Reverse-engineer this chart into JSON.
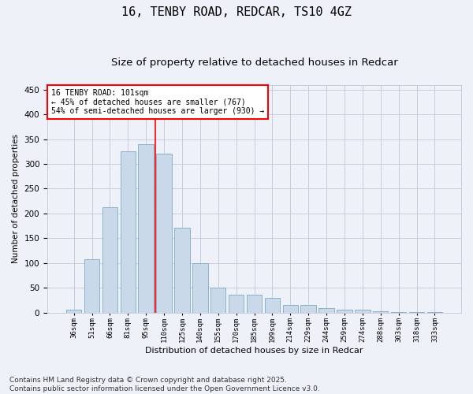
{
  "title": "16, TENBY ROAD, REDCAR, TS10 4GZ",
  "subtitle": "Size of property relative to detached houses in Redcar",
  "xlabel": "Distribution of detached houses by size in Redcar",
  "ylabel": "Number of detached properties",
  "categories": [
    "36sqm",
    "51sqm",
    "66sqm",
    "81sqm",
    "95sqm",
    "110sqm",
    "125sqm",
    "140sqm",
    "155sqm",
    "170sqm",
    "185sqm",
    "199sqm",
    "214sqm",
    "229sqm",
    "244sqm",
    "259sqm",
    "274sqm",
    "288sqm",
    "303sqm",
    "318sqm",
    "333sqm"
  ],
  "values": [
    6,
    108,
    212,
    325,
    340,
    320,
    172,
    100,
    50,
    36,
    36,
    30,
    15,
    15,
    9,
    5,
    5,
    2,
    1,
    1,
    1
  ],
  "bar_color": "#c9d9ea",
  "bar_edge_color": "#7aaac8",
  "grid_color": "#c0c8d8",
  "vline_x": 4.5,
  "vline_color": "red",
  "annotation_text": "16 TENBY ROAD: 101sqm\n← 45% of detached houses are smaller (767)\n54% of semi-detached houses are larger (930) →",
  "annotation_box_color": "white",
  "annotation_box_edge_color": "red",
  "ylim": [
    0,
    460
  ],
  "yticks": [
    0,
    50,
    100,
    150,
    200,
    250,
    300,
    350,
    400,
    450
  ],
  "footnote": "Contains HM Land Registry data © Crown copyright and database right 2025.\nContains public sector information licensed under the Open Government Licence v3.0.",
  "bg_color": "#eef2f8",
  "title_fontsize": 11,
  "subtitle_fontsize": 9.5,
  "footnote_fontsize": 6.5
}
